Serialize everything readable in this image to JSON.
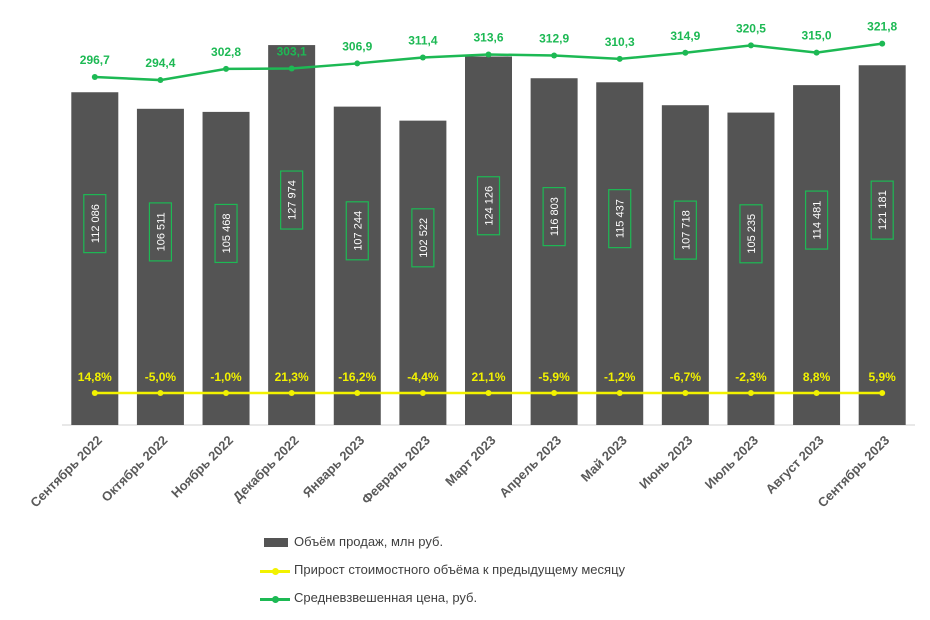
{
  "chart_data": {
    "type": "bar",
    "categories": [
      "Сентябрь 2022",
      "Октябрь 2022",
      "Ноябрь 2022",
      "Декабрь 2022",
      "Январь 2023",
      "Февраль 2023",
      "Март 2023",
      "Апрель 2023",
      "Май 2023",
      "Июнь 2023",
      "Июль 2023",
      "Август 2023",
      "Сентябрь 2023"
    ],
    "series": [
      {
        "name": "Объём продаж, млн руб.",
        "kind": "bar",
        "color": "#545454",
        "values": [
          112086,
          106511,
          105468,
          127974,
          107244,
          102522,
          124126,
          116803,
          115437,
          107718,
          105235,
          114481,
          121181
        ],
        "labels": [
          "112 086",
          "106 511",
          "105 468",
          "127 974",
          "107 244",
          "102 522",
          "124 126",
          "116 803",
          "115 437",
          "107 718",
          "105 235",
          "114 481",
          "121 181"
        ]
      },
      {
        "name": "Прирост стоимостного объёма к предыдущему месяцу",
        "kind": "line",
        "color": "#f2f200",
        "values": [
          14.8,
          -5.0,
          -1.0,
          21.3,
          -16.2,
          -4.4,
          21.1,
          -5.9,
          -1.2,
          -6.7,
          -2.3,
          8.8,
          5.9
        ],
        "labels": [
          "14,8%",
          "-5,0%",
          "-1,0%",
          "21,3%",
          "-16,2%",
          "-4,4%",
          "21,1%",
          "-5,9%",
          "-1,2%",
          "-6,7%",
          "-2,3%",
          "8,8%",
          "5,9%"
        ]
      },
      {
        "name": "Средневзвешенная цена, руб.",
        "kind": "line",
        "color": "#1db954",
        "values": [
          296.7,
          294.4,
          302.8,
          303.1,
          306.9,
          311.4,
          313.6,
          312.9,
          310.3,
          314.9,
          320.5,
          315.0,
          321.8
        ],
        "labels": [
          "296,7",
          "294,4",
          "302,8",
          "303,1",
          "306,9",
          "311,4",
          "313,6",
          "312,9",
          "310,3",
          "314,9",
          "320,5",
          "315,0",
          "321,8"
        ]
      }
    ],
    "legend_position": "bottom",
    "grid": false,
    "title": "",
    "xlabel": "",
    "ylabel": ""
  }
}
